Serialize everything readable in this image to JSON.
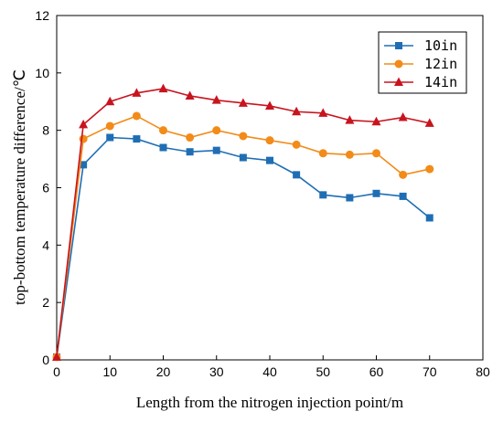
{
  "chart_data": {
    "type": "line",
    "xlabel": "Length from the nitrogen injection point/m",
    "ylabel": "top-bottom temperature difference/℃",
    "xlim": [
      0,
      80
    ],
    "ylim": [
      0,
      12
    ],
    "xticks": [
      0,
      10,
      20,
      30,
      40,
      50,
      60,
      70,
      80
    ],
    "yticks": [
      0,
      2,
      4,
      6,
      8,
      10,
      12
    ],
    "grid": false,
    "legend_position": "top-right",
    "x": [
      0,
      5,
      10,
      15,
      20,
      25,
      30,
      35,
      40,
      45,
      50,
      55,
      60,
      65,
      70
    ],
    "series": [
      {
        "name": "10in",
        "color": "#1f6eb4",
        "marker": "square",
        "values": [
          0.1,
          6.8,
          7.75,
          7.7,
          7.4,
          7.25,
          7.3,
          7.05,
          6.95,
          6.45,
          5.75,
          5.65,
          5.8,
          5.7,
          4.95
        ]
      },
      {
        "name": "12in",
        "color": "#f28b18",
        "marker": "circle",
        "values": [
          0.1,
          7.7,
          8.15,
          8.5,
          8.0,
          7.75,
          8.0,
          7.8,
          7.65,
          7.5,
          7.2,
          7.15,
          7.2,
          6.45,
          6.65
        ]
      },
      {
        "name": "14in",
        "color": "#c8141e",
        "marker": "triangle",
        "values": [
          0.1,
          8.2,
          9.0,
          9.3,
          9.45,
          9.2,
          9.05,
          8.95,
          8.85,
          8.65,
          8.6,
          8.35,
          8.3,
          8.45,
          8.25
        ]
      }
    ]
  }
}
